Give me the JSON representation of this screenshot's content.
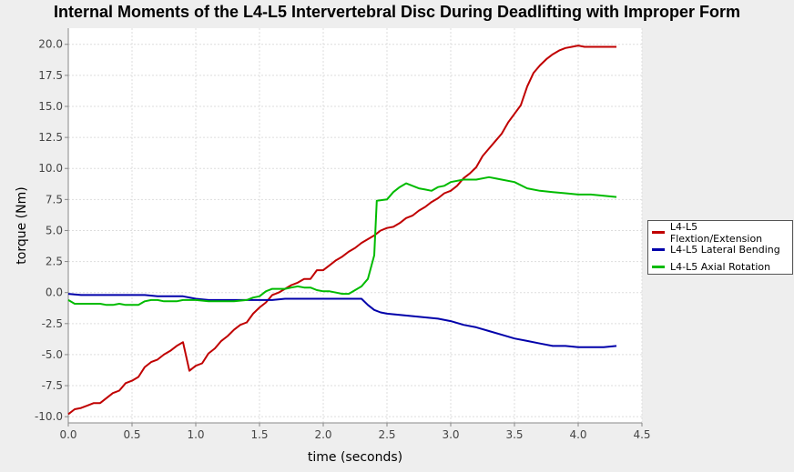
{
  "chart_data": {
    "type": "line",
    "title": "Internal Moments of the L4-L5 Intervertebral Disc During Deadlifting with Improper Form",
    "xlabel": "time (seconds)",
    "ylabel": "torque (Nm)",
    "xlim": [
      0,
      4.5
    ],
    "ylim": [
      -10.5,
      21.3
    ],
    "xticks": [
      0.0,
      0.5,
      1.0,
      1.5,
      2.0,
      2.5,
      3.0,
      3.5,
      4.0,
      4.5
    ],
    "yticks": [
      -10.0,
      -7.5,
      -5.0,
      -2.5,
      0.0,
      2.5,
      5.0,
      7.5,
      10.0,
      12.5,
      15.0,
      17.5,
      20.0
    ],
    "xtick_labels": [
      "0.0",
      "0.5",
      "1.0",
      "1.5",
      "2.0",
      "2.5",
      "3.0",
      "3.5",
      "4.0",
      "4.5"
    ],
    "ytick_labels": [
      "-10.0",
      "-7.5",
      "-5.0",
      "-2.5",
      "0.0",
      "2.5",
      "5.0",
      "7.5",
      "10.0",
      "12.5",
      "15.0",
      "17.5",
      "20.0"
    ],
    "grid": true,
    "legend_position": "right",
    "series": [
      {
        "name": "L4-L5 Flextion/Extension",
        "color": "#c00000",
        "points": [
          [
            0.0,
            -9.8
          ],
          [
            0.05,
            -9.4
          ],
          [
            0.1,
            -9.3
          ],
          [
            0.15,
            -9.1
          ],
          [
            0.2,
            -8.9
          ],
          [
            0.25,
            -8.9
          ],
          [
            0.3,
            -8.5
          ],
          [
            0.35,
            -8.1
          ],
          [
            0.4,
            -7.9
          ],
          [
            0.45,
            -7.3
          ],
          [
            0.5,
            -7.1
          ],
          [
            0.55,
            -6.8
          ],
          [
            0.6,
            -6.0
          ],
          [
            0.65,
            -5.6
          ],
          [
            0.7,
            -5.4
          ],
          [
            0.75,
            -5.0
          ],
          [
            0.8,
            -4.7
          ],
          [
            0.85,
            -4.3
          ],
          [
            0.9,
            -4.0
          ],
          [
            0.95,
            -6.3
          ],
          [
            1.0,
            -5.9
          ],
          [
            1.05,
            -5.7
          ],
          [
            1.1,
            -4.9
          ],
          [
            1.15,
            -4.5
          ],
          [
            1.2,
            -3.9
          ],
          [
            1.25,
            -3.5
          ],
          [
            1.3,
            -3.0
          ],
          [
            1.35,
            -2.6
          ],
          [
            1.4,
            -2.4
          ],
          [
            1.45,
            -1.7
          ],
          [
            1.5,
            -1.2
          ],
          [
            1.55,
            -0.8
          ],
          [
            1.6,
            -0.2
          ],
          [
            1.65,
            0.0
          ],
          [
            1.7,
            0.3
          ],
          [
            1.75,
            0.6
          ],
          [
            1.8,
            0.8
          ],
          [
            1.85,
            1.1
          ],
          [
            1.9,
            1.1
          ],
          [
            1.95,
            1.8
          ],
          [
            2.0,
            1.8
          ],
          [
            2.05,
            2.2
          ],
          [
            2.1,
            2.6
          ],
          [
            2.15,
            2.9
          ],
          [
            2.2,
            3.3
          ],
          [
            2.25,
            3.6
          ],
          [
            2.3,
            4.0
          ],
          [
            2.35,
            4.3
          ],
          [
            2.4,
            4.6
          ],
          [
            2.45,
            5.0
          ],
          [
            2.5,
            5.2
          ],
          [
            2.55,
            5.3
          ],
          [
            2.6,
            5.6
          ],
          [
            2.65,
            6.0
          ],
          [
            2.7,
            6.2
          ],
          [
            2.75,
            6.6
          ],
          [
            2.8,
            6.9
          ],
          [
            2.85,
            7.3
          ],
          [
            2.9,
            7.6
          ],
          [
            2.95,
            8.0
          ],
          [
            3.0,
            8.2
          ],
          [
            3.05,
            8.6
          ],
          [
            3.1,
            9.2
          ],
          [
            3.15,
            9.6
          ],
          [
            3.2,
            10.1
          ],
          [
            3.25,
            11.0
          ],
          [
            3.3,
            11.6
          ],
          [
            3.35,
            12.2
          ],
          [
            3.4,
            12.8
          ],
          [
            3.45,
            13.7
          ],
          [
            3.5,
            14.4
          ],
          [
            3.55,
            15.1
          ],
          [
            3.6,
            16.6
          ],
          [
            3.65,
            17.7
          ],
          [
            3.7,
            18.3
          ],
          [
            3.75,
            18.8
          ],
          [
            3.8,
            19.2
          ],
          [
            3.85,
            19.5
          ],
          [
            3.9,
            19.7
          ],
          [
            3.95,
            19.8
          ],
          [
            4.0,
            19.9
          ],
          [
            4.05,
            19.8
          ],
          [
            4.1,
            19.8
          ],
          [
            4.2,
            19.8
          ],
          [
            4.3,
            19.8
          ]
        ]
      },
      {
        "name": "L4-L5 Lateral Bending",
        "color": "#0000aa",
        "points": [
          [
            0.0,
            -0.1
          ],
          [
            0.1,
            -0.2
          ],
          [
            0.2,
            -0.2
          ],
          [
            0.3,
            -0.2
          ],
          [
            0.4,
            -0.2
          ],
          [
            0.5,
            -0.2
          ],
          [
            0.6,
            -0.2
          ],
          [
            0.7,
            -0.3
          ],
          [
            0.8,
            -0.3
          ],
          [
            0.9,
            -0.3
          ],
          [
            1.0,
            -0.5
          ],
          [
            1.1,
            -0.6
          ],
          [
            1.2,
            -0.6
          ],
          [
            1.3,
            -0.6
          ],
          [
            1.4,
            -0.6
          ],
          [
            1.5,
            -0.6
          ],
          [
            1.6,
            -0.6
          ],
          [
            1.7,
            -0.5
          ],
          [
            1.8,
            -0.5
          ],
          [
            1.9,
            -0.5
          ],
          [
            2.0,
            -0.5
          ],
          [
            2.1,
            -0.5
          ],
          [
            2.2,
            -0.5
          ],
          [
            2.3,
            -0.5
          ],
          [
            2.35,
            -1.0
          ],
          [
            2.4,
            -1.4
          ],
          [
            2.45,
            -1.6
          ],
          [
            2.5,
            -1.7
          ],
          [
            2.6,
            -1.8
          ],
          [
            2.7,
            -1.9
          ],
          [
            2.8,
            -2.0
          ],
          [
            2.9,
            -2.1
          ],
          [
            3.0,
            -2.3
          ],
          [
            3.1,
            -2.6
          ],
          [
            3.2,
            -2.8
          ],
          [
            3.3,
            -3.1
          ],
          [
            3.4,
            -3.4
          ],
          [
            3.5,
            -3.7
          ],
          [
            3.6,
            -3.9
          ],
          [
            3.7,
            -4.1
          ],
          [
            3.8,
            -4.3
          ],
          [
            3.9,
            -4.3
          ],
          [
            4.0,
            -4.4
          ],
          [
            4.1,
            -4.4
          ],
          [
            4.2,
            -4.4
          ],
          [
            4.3,
            -4.3
          ]
        ]
      },
      {
        "name": "L4-L5 Axial Rotation",
        "color": "#00bb00",
        "points": [
          [
            0.0,
            -0.6
          ],
          [
            0.05,
            -0.9
          ],
          [
            0.1,
            -0.9
          ],
          [
            0.15,
            -0.9
          ],
          [
            0.2,
            -0.9
          ],
          [
            0.25,
            -0.9
          ],
          [
            0.3,
            -1.0
          ],
          [
            0.35,
            -1.0
          ],
          [
            0.4,
            -0.9
          ],
          [
            0.45,
            -1.0
          ],
          [
            0.5,
            -1.0
          ],
          [
            0.55,
            -1.0
          ],
          [
            0.6,
            -0.7
          ],
          [
            0.65,
            -0.6
          ],
          [
            0.7,
            -0.6
          ],
          [
            0.75,
            -0.7
          ],
          [
            0.8,
            -0.7
          ],
          [
            0.85,
            -0.7
          ],
          [
            0.9,
            -0.6
          ],
          [
            0.95,
            -0.6
          ],
          [
            1.0,
            -0.6
          ],
          [
            1.1,
            -0.7
          ],
          [
            1.2,
            -0.7
          ],
          [
            1.3,
            -0.7
          ],
          [
            1.4,
            -0.6
          ],
          [
            1.45,
            -0.4
          ],
          [
            1.5,
            -0.3
          ],
          [
            1.55,
            0.1
          ],
          [
            1.6,
            0.3
          ],
          [
            1.65,
            0.3
          ],
          [
            1.7,
            0.3
          ],
          [
            1.75,
            0.4
          ],
          [
            1.8,
            0.5
          ],
          [
            1.85,
            0.4
          ],
          [
            1.9,
            0.4
          ],
          [
            1.95,
            0.2
          ],
          [
            2.0,
            0.1
          ],
          [
            2.05,
            0.1
          ],
          [
            2.1,
            0.0
          ],
          [
            2.15,
            -0.1
          ],
          [
            2.2,
            -0.1
          ],
          [
            2.25,
            0.2
          ],
          [
            2.3,
            0.5
          ],
          [
            2.35,
            1.1
          ],
          [
            2.4,
            3.0
          ],
          [
            2.42,
            7.4
          ],
          [
            2.5,
            7.5
          ],
          [
            2.55,
            8.1
          ],
          [
            2.6,
            8.5
          ],
          [
            2.65,
            8.8
          ],
          [
            2.7,
            8.6
          ],
          [
            2.75,
            8.4
          ],
          [
            2.8,
            8.3
          ],
          [
            2.85,
            8.2
          ],
          [
            2.9,
            8.5
          ],
          [
            2.95,
            8.6
          ],
          [
            3.0,
            8.9
          ],
          [
            3.1,
            9.1
          ],
          [
            3.2,
            9.1
          ],
          [
            3.3,
            9.3
          ],
          [
            3.35,
            9.2
          ],
          [
            3.4,
            9.1
          ],
          [
            3.5,
            8.9
          ],
          [
            3.6,
            8.4
          ],
          [
            3.7,
            8.2
          ],
          [
            3.8,
            8.1
          ],
          [
            3.9,
            8.0
          ],
          [
            4.0,
            7.9
          ],
          [
            4.1,
            7.9
          ],
          [
            4.2,
            7.8
          ],
          [
            4.3,
            7.7
          ]
        ]
      }
    ]
  }
}
